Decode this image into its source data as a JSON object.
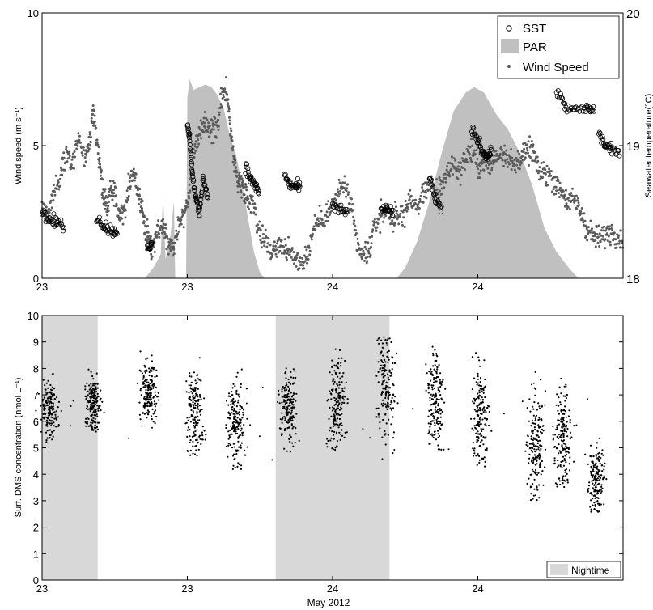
{
  "colors": {
    "par_fill": "#c0c0c0",
    "wind_marker": "#5a5a5a",
    "sst_marker": "#000000",
    "dms_marker": "#000000",
    "night_fill": "#d8d8d8"
  },
  "xlabel": "May 2012",
  "chart_data": [
    {
      "type": "scatter",
      "panel": "top",
      "x_unit": "hours since 23 May 2012 00:00",
      "xlim": [
        0,
        48
      ],
      "x_ticks": [
        {
          "x": 0,
          "label": "23"
        },
        {
          "x": 12,
          "label": "23"
        },
        {
          "x": 24,
          "label": "24"
        },
        {
          "x": 36,
          "label": "24"
        }
      ],
      "ylabel": "Wind speed (m s⁻¹)",
      "ylim": [
        0,
        10
      ],
      "y_ticks": [
        0,
        5,
        10
      ],
      "y2label": "Seawater temperature(°C)",
      "y2lim": [
        18,
        20
      ],
      "y2_ticks": [
        18,
        19,
        20
      ],
      "legend": {
        "position": "top-right",
        "entries": [
          {
            "label": "SST",
            "symbol": "circle"
          },
          {
            "label": "PAR",
            "symbol": "patch"
          },
          {
            "label": "Wind Speed",
            "symbol": "dot"
          }
        ]
      },
      "series": [
        {
          "name": "Wind Speed",
          "axis": "left",
          "points": [
            [
              0.0,
              2.6
            ],
            [
              0.5,
              2.4
            ],
            [
              1.0,
              3.3
            ],
            [
              1.5,
              3.8
            ],
            [
              2.0,
              4.9
            ],
            [
              2.5,
              4.2
            ],
            [
              3.0,
              5.4
            ],
            [
              3.5,
              4.4
            ],
            [
              3.9,
              5.0
            ],
            [
              4.2,
              6.2
            ],
            [
              4.5,
              5.2
            ],
            [
              4.8,
              4.2
            ],
            [
              5.1,
              3.0
            ],
            [
              5.4,
              2.8
            ],
            [
              5.7,
              3.4
            ],
            [
              6.0,
              3.0
            ],
            [
              6.4,
              2.6
            ],
            [
              6.8,
              2.5
            ],
            [
              7.2,
              3.6
            ],
            [
              7.6,
              4.0
            ],
            [
              8.0,
              3.1
            ],
            [
              8.3,
              2.5
            ],
            [
              8.6,
              1.6
            ],
            [
              8.8,
              1.6
            ],
            [
              9.0,
              1.1
            ],
            [
              9.2,
              1.3
            ],
            [
              9.6,
              1.8
            ],
            [
              10.0,
              2.0
            ],
            [
              10.4,
              1.4
            ],
            [
              10.8,
              1.1
            ],
            [
              11.2,
              1.9
            ],
            [
              11.6,
              2.4
            ],
            [
              12.0,
              2.8
            ],
            [
              12.4,
              4.2
            ],
            [
              12.8,
              5.3
            ],
            [
              13.2,
              5.5
            ],
            [
              13.6,
              5.8
            ],
            [
              14.0,
              5.6
            ],
            [
              14.4,
              5.6
            ],
            [
              14.8,
              6.6
            ],
            [
              15.2,
              7.2
            ],
            [
              15.5,
              6.0
            ],
            [
              15.8,
              4.6
            ],
            [
              16.1,
              3.8
            ],
            [
              16.4,
              3.6
            ],
            [
              16.7,
              3.4
            ],
            [
              17.0,
              3.0
            ],
            [
              17.5,
              2.9
            ],
            [
              18.0,
              1.6
            ],
            [
              18.5,
              1.4
            ],
            [
              19.0,
              1.0
            ],
            [
              19.5,
              1.3
            ],
            [
              20.0,
              1.2
            ],
            [
              20.5,
              0.9
            ],
            [
              21.0,
              0.7
            ],
            [
              21.5,
              0.6
            ],
            [
              22.0,
              1.0
            ],
            [
              22.5,
              2.0
            ],
            [
              23.0,
              2.2
            ],
            [
              23.5,
              2.4
            ],
            [
              24.0,
              2.7
            ],
            [
              24.5,
              3.2
            ],
            [
              25.0,
              3.6
            ],
            [
              25.5,
              2.7
            ],
            [
              26.0,
              1.3
            ],
            [
              26.5,
              0.8
            ],
            [
              27.0,
              1.0
            ],
            [
              27.5,
              2.0
            ],
            [
              28.0,
              2.4
            ],
            [
              28.5,
              2.6
            ],
            [
              29.0,
              2.2
            ],
            [
              29.5,
              2.3
            ],
            [
              30.0,
              2.6
            ],
            [
              30.5,
              3.0
            ],
            [
              31.0,
              2.6
            ],
            [
              31.5,
              3.3
            ],
            [
              32.0,
              3.6
            ],
            [
              32.5,
              3.2
            ],
            [
              33.0,
              3.5
            ],
            [
              33.5,
              4.0
            ],
            [
              34.0,
              4.3
            ],
            [
              34.5,
              4.0
            ],
            [
              35.0,
              4.6
            ],
            [
              35.5,
              4.8
            ],
            [
              36.0,
              4.2
            ],
            [
              36.5,
              4.4
            ],
            [
              37.0,
              4.2
            ],
            [
              37.5,
              4.6
            ],
            [
              38.0,
              4.8
            ],
            [
              38.5,
              4.6
            ],
            [
              39.0,
              4.2
            ],
            [
              39.5,
              4.6
            ],
            [
              40.0,
              4.7
            ],
            [
              40.5,
              4.9
            ],
            [
              41.0,
              4.0
            ],
            [
              41.5,
              4.0
            ],
            [
              42.0,
              3.9
            ],
            [
              42.5,
              3.5
            ],
            [
              43.0,
              3.3
            ],
            [
              43.5,
              2.8
            ],
            [
              44.0,
              3.0
            ],
            [
              44.5,
              2.5
            ],
            [
              45.0,
              1.9
            ],
            [
              45.5,
              1.6
            ],
            [
              46.0,
              1.5
            ],
            [
              46.5,
              1.6
            ],
            [
              47.0,
              1.8
            ],
            [
              47.5,
              1.6
            ],
            [
              48.0,
              1.5
            ]
          ]
        },
        {
          "name": "SST",
          "axis": "right",
          "segments": [
            [
              [
                0.0,
                18.5
              ],
              [
                0.6,
                18.44
              ],
              [
                1.2,
                18.42
              ],
              [
                1.8,
                18.4
              ]
            ],
            [
              [
                4.5,
                18.45
              ],
              [
                5.1,
                18.4
              ],
              [
                5.7,
                18.36
              ],
              [
                6.2,
                18.35
              ]
            ],
            [
              [
                8.7,
                18.24
              ],
              [
                9.1,
                18.24
              ]
            ],
            [
              [
                12.0,
                19.15
              ],
              [
                12.2,
                19.05
              ],
              [
                12.4,
                18.8
              ],
              [
                12.7,
                18.6
              ],
              [
                13.0,
                18.5
              ],
              [
                13.3,
                18.75
              ],
              [
                13.7,
                18.62
              ]
            ],
            [
              [
                16.8,
                18.85
              ],
              [
                17.2,
                18.75
              ],
              [
                17.6,
                18.7
              ],
              [
                17.9,
                18.65
              ]
            ],
            [
              [
                20.0,
                18.78
              ],
              [
                20.5,
                18.7
              ],
              [
                21.0,
                18.69
              ],
              [
                21.3,
                18.69
              ]
            ],
            [
              [
                24.0,
                18.53
              ],
              [
                24.7,
                18.52
              ],
              [
                25.2,
                18.5
              ]
            ],
            [
              [
                28.0,
                18.52
              ],
              [
                28.5,
                18.51
              ],
              [
                29.0,
                18.51
              ]
            ],
            [
              [
                32.0,
                18.75
              ],
              [
                32.5,
                18.6
              ],
              [
                33.0,
                18.5
              ]
            ],
            [
              [
                35.5,
                19.12
              ],
              [
                36.0,
                19.04
              ],
              [
                36.4,
                18.95
              ],
              [
                36.8,
                18.92
              ],
              [
                37.1,
                18.95
              ]
            ],
            [
              [
                42.5,
                19.42
              ],
              [
                43.2,
                19.3
              ],
              [
                44.0,
                19.26
              ],
              [
                45.0,
                19.28
              ],
              [
                45.6,
                19.26
              ]
            ],
            [
              [
                46.0,
                19.1
              ],
              [
                46.5,
                19.0
              ],
              [
                47.0,
                18.98
              ],
              [
                47.7,
                18.95
              ]
            ]
          ]
        },
        {
          "name": "PAR",
          "axis": "left",
          "kind": "area",
          "points": [
            [
              8.5,
              0.0
            ],
            [
              9.2,
              0.4
            ],
            [
              9.8,
              0.9
            ],
            [
              10.0,
              3.2
            ],
            [
              10.2,
              0.7
            ],
            [
              10.6,
              1.6
            ],
            [
              10.9,
              2.9
            ],
            [
              11.0,
              0.0
            ],
            [
              11.9,
              0.0
            ],
            [
              12.0,
              6.8
            ],
            [
              12.2,
              7.5
            ],
            [
              12.5,
              7.1
            ],
            [
              13.0,
              7.2
            ],
            [
              13.5,
              7.3
            ],
            [
              14.0,
              7.2
            ],
            [
              14.5,
              6.9
            ],
            [
              15.0,
              6.4
            ],
            [
              15.5,
              5.4
            ],
            [
              16.0,
              4.7
            ],
            [
              16.5,
              3.6
            ],
            [
              17.0,
              2.3
            ],
            [
              17.5,
              1.0
            ],
            [
              18.0,
              0.2
            ],
            [
              18.4,
              0.0
            ],
            [
              29.3,
              0.0
            ],
            [
              30.0,
              0.4
            ],
            [
              31.0,
              1.4
            ],
            [
              32.0,
              2.9
            ],
            [
              33.0,
              4.7
            ],
            [
              34.0,
              6.3
            ],
            [
              35.0,
              7.0
            ],
            [
              35.7,
              7.2
            ],
            [
              36.5,
              7.0
            ],
            [
              37.5,
              6.2
            ],
            [
              38.5,
              5.6
            ],
            [
              39.5,
              4.7
            ],
            [
              40.5,
              3.5
            ],
            [
              41.5,
              1.9
            ],
            [
              42.5,
              1.0
            ],
            [
              43.5,
              0.4
            ],
            [
              44.3,
              0.0
            ]
          ]
        }
      ]
    },
    {
      "type": "scatter",
      "panel": "bottom",
      "x_unit": "hours since 23 May 2012 00:00",
      "xlim": [
        0,
        48
      ],
      "x_ticks": [
        {
          "x": 0,
          "label": "23"
        },
        {
          "x": 12,
          "label": "23"
        },
        {
          "x": 24,
          "label": "24"
        },
        {
          "x": 36,
          "label": "24"
        }
      ],
      "ylabel": "Surf. DMS concentration (nmol L⁻¹)",
      "ylim": [
        0,
        10
      ],
      "y_ticks": [
        0,
        1,
        2,
        3,
        4,
        5,
        6,
        7,
        8,
        9,
        10
      ],
      "legend": {
        "position": "bottom-right",
        "entries": [
          {
            "label": "Nightime",
            "symbol": "patch"
          }
        ]
      },
      "nighttime_spans": [
        [
          0,
          4.6
        ],
        [
          19.3,
          28.7
        ]
      ],
      "dms_clusters": [
        {
          "x": 0.6,
          "y_range": [
            5.2,
            8.0
          ],
          "center": 6.5
        },
        {
          "x": 4.2,
          "y_range": [
            5.5,
            8.2
          ],
          "center": 6.7
        },
        {
          "x": 8.8,
          "y_range": [
            5.9,
            8.8
          ],
          "center": 7.2
        },
        {
          "x": 12.6,
          "y_range": [
            4.7,
            8.6
          ],
          "center": 6.3
        },
        {
          "x": 16.0,
          "y_range": [
            4.1,
            8.0
          ],
          "center": 6.0
        },
        {
          "x": 20.4,
          "y_range": [
            4.8,
            8.4
          ],
          "center": 6.5
        },
        {
          "x": 24.4,
          "y_range": [
            4.9,
            9.6
          ],
          "center": 6.8
        },
        {
          "x": 28.4,
          "y_range": [
            4.2,
            9.2
          ],
          "center": 7.4
        },
        {
          "x": 32.5,
          "y_range": [
            4.9,
            10.0
          ],
          "center": 6.8
        },
        {
          "x": 36.2,
          "y_range": [
            4.2,
            9.1
          ],
          "center": 6.3
        },
        {
          "x": 40.8,
          "y_range": [
            3.0,
            8.2
          ],
          "center": 5.0
        },
        {
          "x": 43.0,
          "y_range": [
            3.5,
            8.0
          ],
          "center": 5.3
        },
        {
          "x": 45.8,
          "y_range": [
            2.5,
            6.0
          ],
          "center": 3.9
        }
      ]
    }
  ]
}
